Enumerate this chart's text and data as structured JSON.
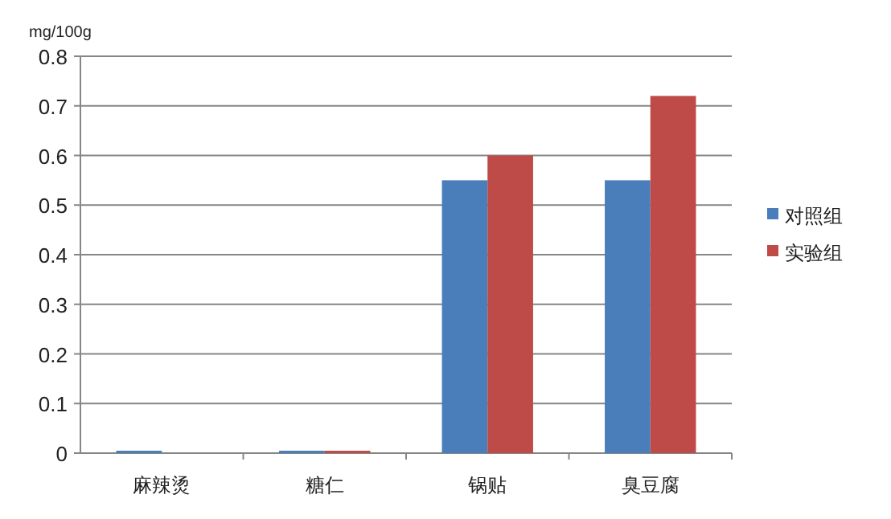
{
  "chart_data": {
    "type": "bar",
    "categories": [
      "麻辣烫",
      "糖仁",
      "锅贴",
      "臭豆腐"
    ],
    "series": [
      {
        "name": "对照组",
        "color": "#4a7ebb",
        "values": [
          0,
          0,
          0.55,
          0.55
        ]
      },
      {
        "name": "实验组",
        "color": "#be4b48",
        "values": [
          null,
          0,
          0.6,
          0.72
        ]
      }
    ],
    "ylabel": "mg/100g",
    "ylim": [
      0,
      0.8
    ],
    "yticks": [
      0,
      0.1,
      0.2,
      0.3,
      0.4,
      0.5,
      0.6,
      0.7,
      0.8
    ],
    "grid": "y",
    "legend": "right"
  }
}
